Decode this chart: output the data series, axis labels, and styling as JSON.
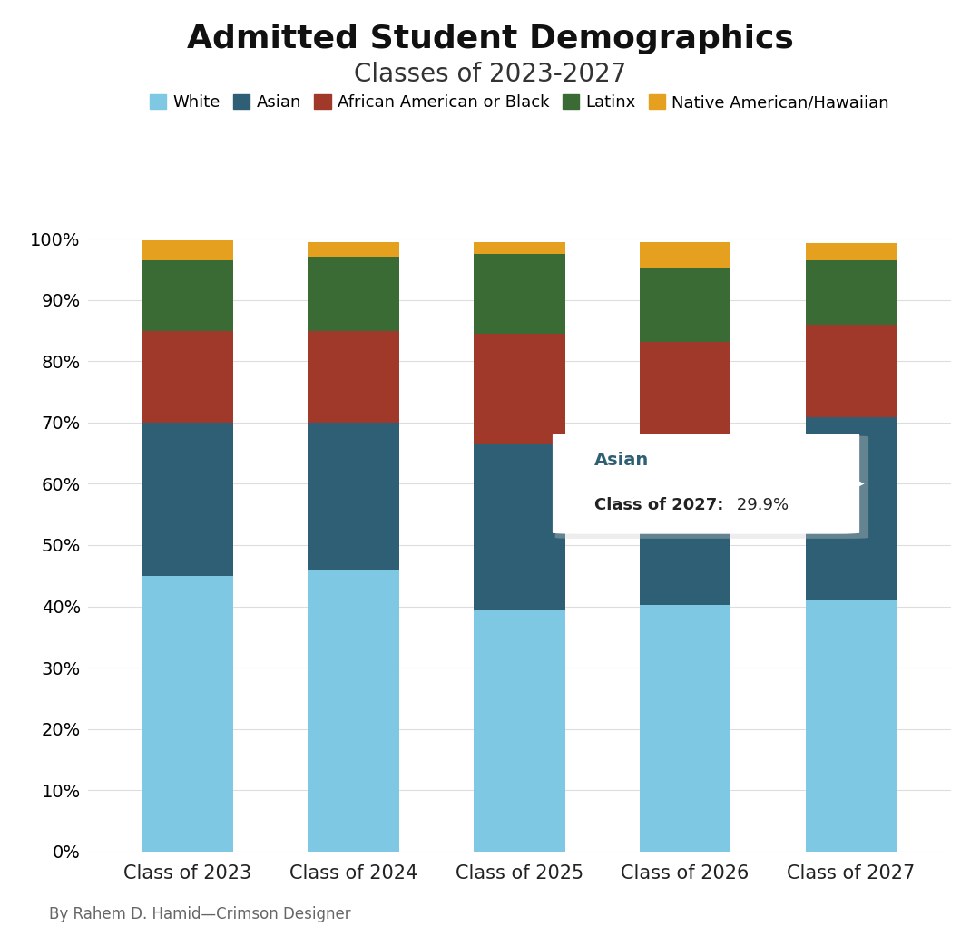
{
  "title": "Admitted Student Demographics",
  "subtitle": "Classes of 2023-2027",
  "categories": [
    "Class of 2023",
    "Class of 2024",
    "Class of 2025",
    "Class of 2026",
    "Class of 2027"
  ],
  "groups": [
    "White",
    "Asian",
    "African American or Black",
    "Latinx",
    "Native American/Hawaiian"
  ],
  "colors": [
    "#7EC8E3",
    "#2E5F74",
    "#A0392A",
    "#3A6B35",
    "#E5A020"
  ],
  "data": {
    "White": [
      45.0,
      46.0,
      39.5,
      40.2,
      40.9
    ],
    "Asian": [
      25.0,
      24.0,
      27.0,
      28.0,
      29.9
    ],
    "African American or Black": [
      15.0,
      15.0,
      18.0,
      15.0,
      15.2
    ],
    "Latinx": [
      11.5,
      12.0,
      13.0,
      12.0,
      10.5
    ],
    "Native American/Hawaiian": [
      3.2,
      2.5,
      2.0,
      4.3,
      2.8
    ]
  },
  "footer": "By Rahem D. Hamid—Crimson Designer",
  "background_color": "#FFFFFF",
  "title_fontsize": 26,
  "subtitle_fontsize": 20,
  "legend_fontsize": 13,
  "tick_fontsize": 14,
  "xtick_fontsize": 15,
  "footer_fontsize": 12,
  "tooltip_title": "Asian",
  "tooltip_body_bold": "Class of 2027:",
  "tooltip_body_value": " 29.9%",
  "tooltip_title_color": "#2E5F74",
  "tooltip_body_color": "#222222"
}
